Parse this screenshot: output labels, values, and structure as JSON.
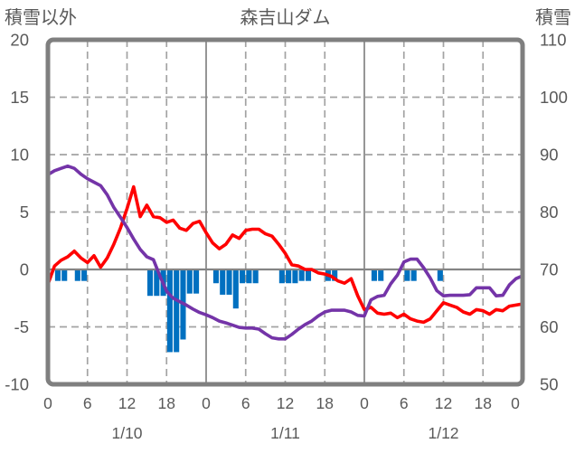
{
  "page": {
    "background": "#FFFFFF"
  },
  "chart_data": {
    "type": "combo-bar-line",
    "title": "森吉山ダム",
    "left_axis": {
      "title": "積雪以外",
      "min": -10,
      "max": 20,
      "ticks": [
        20,
        15,
        10,
        5,
        0,
        -5,
        -10
      ]
    },
    "right_axis": {
      "title": "積雪",
      "min": 50,
      "max": 110,
      "ticks": [
        110,
        100,
        90,
        80,
        70,
        60,
        50
      ]
    },
    "x_axis": {
      "hours_total": 72,
      "tick_hours": [
        0,
        6,
        12,
        18,
        24,
        30,
        36,
        42,
        48,
        54,
        60,
        66,
        72
      ],
      "tick_labels": [
        "0",
        "6",
        "12",
        "18",
        "0",
        "6",
        "12",
        "18",
        "0",
        "6",
        "12",
        "18",
        "0"
      ],
      "date_labels": [
        {
          "label": "1/10",
          "hour": 12
        },
        {
          "label": "1/11",
          "hour": 36
        },
        {
          "label": "1/12",
          "hour": 60
        }
      ]
    },
    "gridlines": {
      "h_dashed_at_left_values": [
        15,
        10,
        5,
        -5
      ],
      "v_dashed_at_hours": [
        6,
        12,
        18,
        30,
        36,
        42,
        54,
        60,
        66
      ],
      "v_solid_at_hours": [
        24,
        48
      ],
      "zero_line_at": 0,
      "dashed_color": "#A3A3A3",
      "solid_color": "#848484",
      "border_color": "#7F7F7F",
      "text_color": "#595959"
    },
    "series": [
      {
        "name": "blue-bars",
        "type": "bar",
        "axis": "left",
        "color": "#0070C0",
        "points": [
          [
            1,
            -1.0
          ],
          [
            2,
            -1.0
          ],
          [
            4,
            -1.0
          ],
          [
            5,
            -1.0
          ],
          [
            15,
            -2.3
          ],
          [
            16,
            -2.3
          ],
          [
            17,
            -2.3
          ],
          [
            18,
            -7.2
          ],
          [
            19,
            -7.2
          ],
          [
            20,
            -6.1
          ],
          [
            21,
            -2.1
          ],
          [
            22,
            -2.1
          ],
          [
            25,
            -1.2
          ],
          [
            26,
            -2.2
          ],
          [
            27,
            -2.2
          ],
          [
            28,
            -3.4
          ],
          [
            29,
            -1.2
          ],
          [
            30,
            -1.2
          ],
          [
            31,
            -1.2
          ],
          [
            35,
            -1.2
          ],
          [
            36,
            -1.2
          ],
          [
            37,
            -1.2
          ],
          [
            38,
            -1.0
          ],
          [
            39,
            -1.0
          ],
          [
            42,
            -1.0
          ],
          [
            43,
            -1.0
          ],
          [
            49,
            -1.0
          ],
          [
            50,
            -1.0
          ],
          [
            54,
            -1.0
          ],
          [
            55,
            -1.0
          ],
          [
            59,
            -1.0
          ]
        ]
      },
      {
        "name": "red-line",
        "type": "line",
        "axis": "left",
        "color": "#FF0000",
        "values": [
          -1.3,
          0.3,
          0.8,
          1.1,
          1.6,
          1.0,
          0.6,
          1.2,
          0.2,
          1.0,
          2.2,
          3.6,
          5.3,
          7.2,
          4.6,
          5.6,
          4.6,
          4.5,
          4.1,
          4.3,
          3.6,
          3.4,
          4.0,
          4.2,
          3.2,
          2.3,
          1.8,
          2.2,
          3.0,
          2.7,
          3.4,
          3.5,
          3.5,
          3.1,
          2.9,
          2.2,
          1.4,
          0.4,
          0.3,
          0.0,
          0.0,
          -0.3,
          -0.4,
          -0.6,
          -1.0,
          -1.2,
          -0.8,
          -2.3,
          -3.5,
          -3.3,
          -3.8,
          -3.9,
          -3.8,
          -4.2,
          -3.9,
          -4.3,
          -4.5,
          -4.6,
          -4.3,
          -3.6,
          -2.9,
          -3.1,
          -3.3,
          -3.7,
          -3.9,
          -3.5,
          -3.6,
          -3.9,
          -3.5,
          -3.6,
          -3.2,
          -3.1,
          -3.0
        ]
      },
      {
        "name": "purple-line",
        "type": "line",
        "axis": "right",
        "color": "#7434A8",
        "values": [
          86.5,
          87.2,
          87.6,
          88.0,
          87.6,
          86.6,
          85.8,
          85.2,
          84.6,
          83.0,
          80.8,
          79.1,
          77.3,
          75.3,
          73.5,
          72.2,
          71.7,
          68.8,
          66.2,
          65.0,
          64.4,
          63.8,
          63.1,
          62.5,
          62.1,
          61.6,
          61.0,
          60.7,
          60.3,
          59.9,
          59.8,
          59.8,
          59.6,
          58.8,
          58.1,
          57.9,
          57.9,
          58.7,
          59.6,
          60.4,
          61.0,
          61.9,
          62.6,
          62.9,
          62.9,
          62.9,
          62.6,
          62.0,
          61.9,
          64.7,
          65.3,
          65.5,
          67.5,
          69.0,
          71.3,
          71.8,
          71.8,
          70.3,
          68.5,
          66.3,
          65.4,
          65.5,
          65.5,
          65.5,
          65.6,
          66.8,
          66.8,
          66.8,
          65.4,
          65.5,
          67.3,
          68.4,
          68.9
        ]
      }
    ]
  }
}
